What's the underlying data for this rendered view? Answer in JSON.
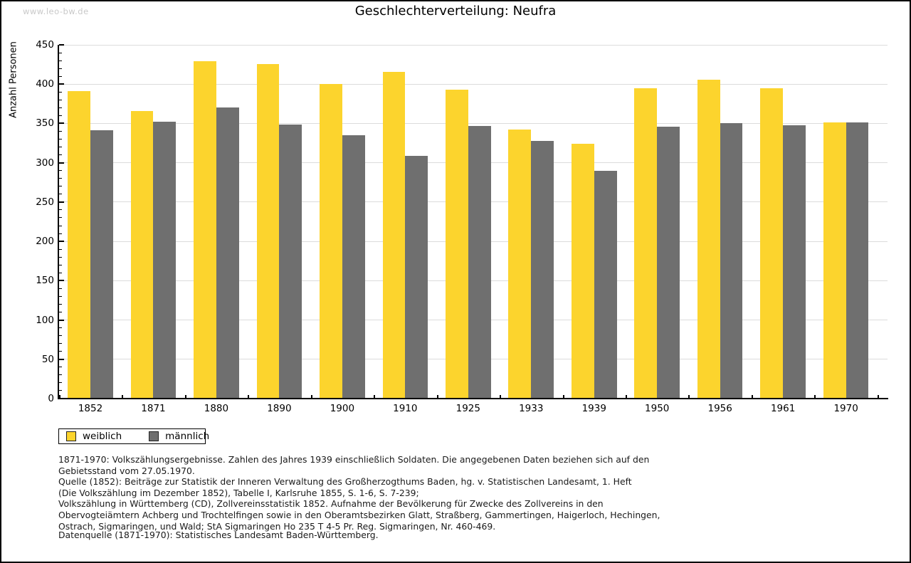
{
  "page": {
    "watermark": "www.leo-bw.de"
  },
  "chart_data": {
    "type": "bar",
    "title": "Geschlechterverteilung: Neufra",
    "ylabel": "Anzahl Personen",
    "ylim": [
      0,
      450
    ],
    "ytick_step": 50,
    "y_minor_step": 10,
    "grid": true,
    "legend_position": "bottom-left",
    "categories": [
      "1852",
      "1871",
      "1880",
      "1890",
      "1900",
      "1910",
      "1925",
      "1933",
      "1939",
      "1950",
      "1956",
      "1961",
      "1970"
    ],
    "series": [
      {
        "name": "weiblich",
        "color": "#FCD42D",
        "values": [
          391,
          366,
          429,
          426,
          400,
          416,
          393,
          342,
          324,
          395,
          406,
          395,
          351
        ]
      },
      {
        "name": "männlich",
        "color": "#6F6F6F",
        "values": [
          341,
          352,
          370,
          349,
          335,
          309,
          347,
          328,
          290,
          346,
          350,
          348,
          351
        ]
      }
    ]
  },
  "footer": {
    "notes": [
      "1871-1970: Volkszählungsergebnisse. Zahlen des Jahres 1939 einschließlich Soldaten. Die angegebenen Daten beziehen sich auf den",
      "Gebietsstand vom 27.05.1970.",
      "Quelle (1852): Beiträge zur Statistik der Inneren Verwaltung des Großherzogthums Baden, hg. v. Statistischen Landesamt, 1. Heft",
      "(Die Volkszählung im Dezember 1852), Tabelle I, Karlsruhe 1855, S. 1-6, S. 7-239;",
      "Volkszählung in Württemberg (CD), Zollvereinsstatistik 1852. Aufnahme der Bevölkerung für Zwecke des Zollvereins in den",
      "Obervogteiämtern Achberg und Trochtelfingen sowie in den Oberamtsbezirken Glatt, Straßberg, Gammertingen, Haigerloch, Hechingen,",
      "Ostrach, Sigmaringen, und Wald; StA Sigmaringen Ho 235 T 4-5 Pr. Reg. Sigmaringen, Nr. 460-469."
    ],
    "source": "Datenquelle (1871-1970): Statistisches Landesamt Baden-Württemberg."
  }
}
